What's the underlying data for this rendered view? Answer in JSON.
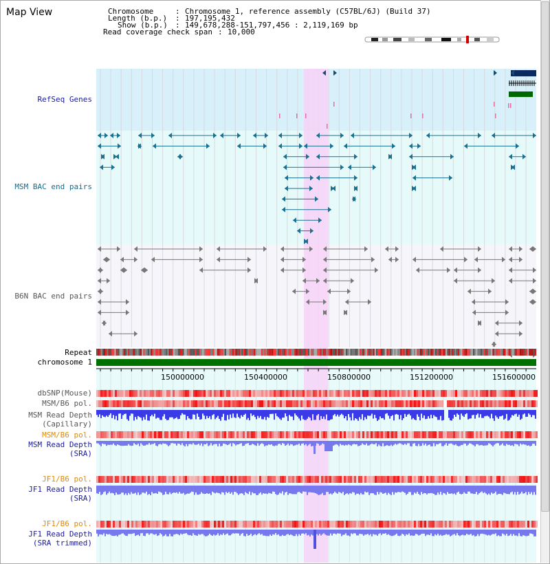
{
  "page": {
    "title": "Map View"
  },
  "header": {
    "chromosome_key": "Chromosome",
    "chromosome_value": "Chromosome 1, reference assembly (C57BL/6J) (Build 37)",
    "length_key": "Length (b.p.)",
    "length_value": "197,195,432",
    "show_key": "Show (b.p.)",
    "show_value": "149,678,288-151,797,456 : 2,119,169 bp",
    "span_key": "Read coverage check span",
    "span_value": "10,000"
  },
  "tracks": {
    "refseq": "RefSeq Genes",
    "msm_bac": "MSM BAC end pairs",
    "b6n_bac": "B6N BAC end pairs",
    "repeat": "Repeat",
    "chromosome": "chromosome 1",
    "dbsnp": "dbSNP(Mouse)",
    "msm_b6_pol_1": "MSM/B6 pol.",
    "msm_depth_cap_1": "MSM Read Depth",
    "msm_depth_cap_2": "(Capillary)",
    "msm_b6_pol_2": "MSM/B6 pol.",
    "msm_depth_sra_1": "MSM Read Depth",
    "msm_depth_sra_2": "(SRA)",
    "jf1_b6_pol_1": "JF1/B6 pol.",
    "jf1_depth_sra_1": "JF1 Read Depth",
    "jf1_depth_sra_2": "(SRA)",
    "jf1_b6_pol_2": "JF1/B6 pol.",
    "jf1_depth_trim_1": "JF1 Read Depth",
    "jf1_depth_trim_2": "(SRA trimmed)"
  },
  "axis": {
    "ticks": [
      "150000000",
      "150400000",
      "150800000",
      "151200000",
      "151600000"
    ]
  },
  "colors": {
    "refseq_bg": "#d8f0fa",
    "msm_bg": "#e6fafa",
    "b6n_bg": "#f6f6fa",
    "lower_bg": "#e8fafa",
    "highlight": "#f7d2f7",
    "msm_feature": "#1a7090",
    "b6n_feature": "#777777",
    "label_navy": "#1a1a9a",
    "label_teal": "#1a6a8a",
    "label_orange": "#e08a00",
    "chromosome_bar": "#007000",
    "depth_blue": "#3a3ae8",
    "depth_light": "#7878ee"
  }
}
